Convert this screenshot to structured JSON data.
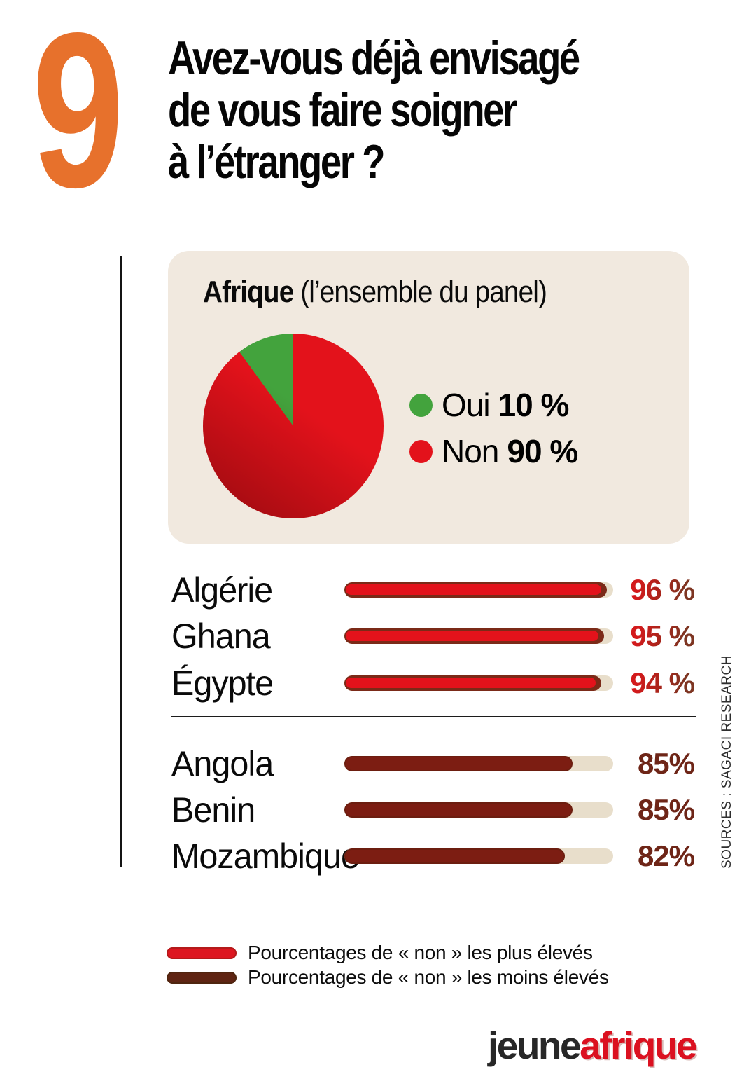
{
  "header": {
    "number": "9",
    "title_lines": [
      "Avez-vous déjà envisagé",
      "de vous faire soigner",
      "à l’étranger ?"
    ]
  },
  "panel": {
    "title_bold": "Afrique",
    "title_rest": " (l’ensemble du panel)"
  },
  "chart_data": [
    {
      "type": "pie",
      "title": "Afrique (l’ensemble du panel)",
      "labels": [
        "Oui",
        "Non"
      ],
      "values": [
        10,
        90
      ],
      "value_labels": [
        "10 %",
        "90 %"
      ],
      "colors": [
        "#43a33d",
        "#e3121b"
      ],
      "legend_position": "right",
      "start_angle_deg": 0,
      "note": "green Oui slice sits just left of 12 o'clock; red Non fills the rest"
    },
    {
      "type": "bar",
      "orientation": "horizontal",
      "categories": [
        "Algérie",
        "Ghana",
        "Égypte",
        "Angola",
        "Benin",
        "Mozambique"
      ],
      "values": [
        96,
        95,
        94,
        85,
        85,
        82
      ],
      "value_labels": [
        "96 %",
        "95 %",
        "94 %",
        "85%",
        "85%",
        "82%"
      ],
      "series": [
        {
          "name": "Pourcentages de « non » les plus élevés",
          "color": "#e3121b",
          "indices": [
            0,
            1,
            2
          ]
        },
        {
          "name": "Pourcentages de « non » les moins élevés",
          "color": "#7c1d12",
          "indices": [
            3,
            4,
            5
          ]
        }
      ],
      "legend": [
        "Pourcentages de « non » les plus élevés",
        "Pourcentages de « non » les moins élevés"
      ],
      "xlim": [
        0,
        100
      ],
      "grid": false
    }
  ],
  "source": {
    "label": "SOURCES : SAGACI RESEARCH"
  },
  "logo": {
    "jeune": "jeune",
    "afrique": "afrique"
  },
  "colors": {
    "accent_orange": "#e7712c",
    "bright_red": "#e3121b",
    "dark_red": "#7c1d12",
    "green": "#43a33d",
    "panel_bg": "#f1e9df",
    "track_beige": "#e8decb"
  }
}
